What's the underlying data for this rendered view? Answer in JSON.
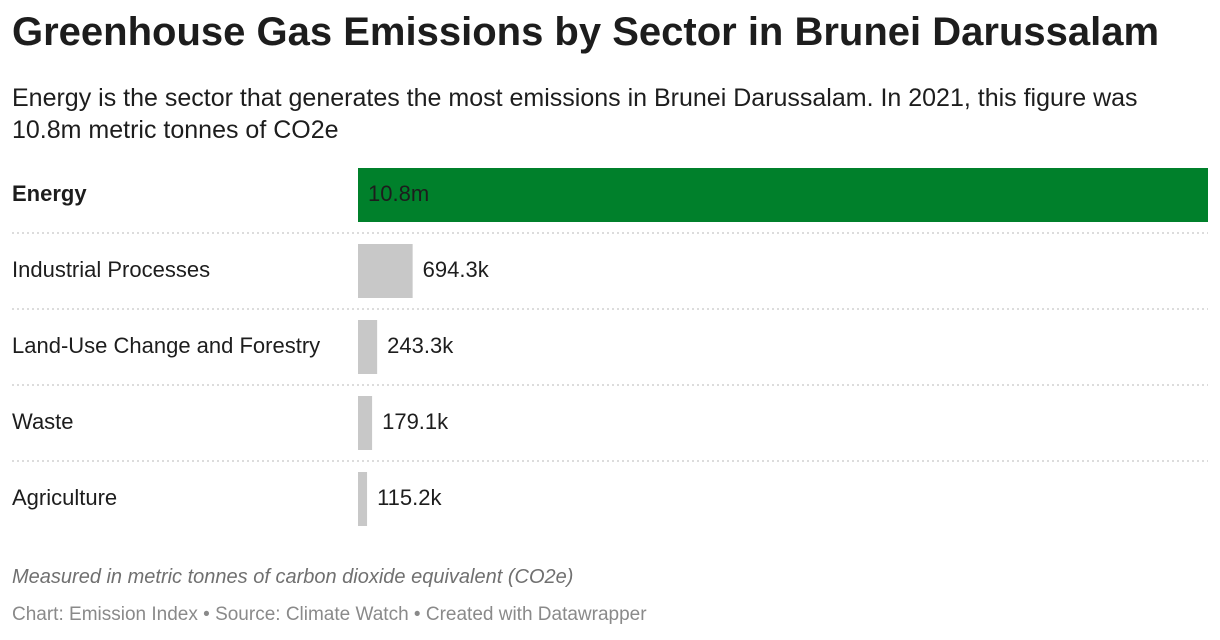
{
  "chart_data": {
    "type": "bar",
    "orientation": "horizontal",
    "title": "Greenhouse Gas Emissions by Sector in Brunei Darussalam",
    "subtitle": "Energy is the sector that generates the most emissions in Brunei Darussalam. In 2021, this figure was 10.8m metric tonnes of CO2e",
    "categories": [
      "Energy",
      "Industrial Processes",
      "Land-Use Change and Forestry",
      "Waste",
      "Agriculture"
    ],
    "values": [
      10800000,
      694300,
      243300,
      179100,
      115200
    ],
    "value_labels": [
      "10.8m",
      "694.3k",
      "243.3k",
      "179.1k",
      "115.2k"
    ],
    "colors": [
      "#00802b",
      "#c8c8c8",
      "#c8c8c8",
      "#c8c8c8",
      "#c8c8c8"
    ],
    "xlim": [
      0,
      10800000
    ],
    "note": "Measured in metric tonnes of carbon dioxide equivalent (CO2e)",
    "source": "Chart: Emission Index • Source: Climate Watch • Created with Datawrapper"
  }
}
